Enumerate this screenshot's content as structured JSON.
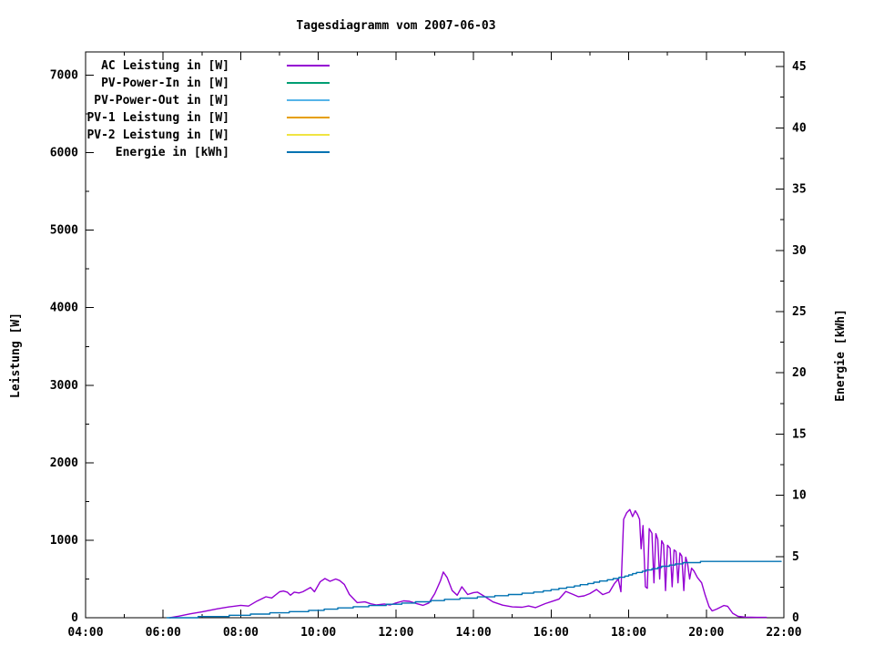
{
  "title": "Tagesdiagramm vom 2007-06-03",
  "chart_data": {
    "type": "line",
    "title": "Tagesdiagramm vom 2007-06-03",
    "grid": false,
    "background": "#ffffff",
    "legend_position": "top-left-inside",
    "x_axis": {
      "label": "",
      "unit": "time",
      "range_hours": [
        4,
        22
      ],
      "tick_hours": [
        4,
        6,
        8,
        10,
        12,
        14,
        16,
        18,
        20,
        22
      ],
      "tick_labels": [
        "04:00",
        "06:00",
        "08:00",
        "10:00",
        "12:00",
        "14:00",
        "16:00",
        "18:00",
        "20:00",
        "22:00"
      ],
      "minor_tick_hours": [
        5,
        7,
        9,
        11,
        13,
        15,
        17,
        19,
        21
      ]
    },
    "y_left": {
      "label": "Leistung [W]",
      "range": [
        0,
        7300
      ],
      "ticks": [
        0,
        1000,
        2000,
        3000,
        4000,
        5000,
        6000,
        7000
      ],
      "tick_labels": [
        "0",
        "1000",
        "2000",
        "3000",
        "4000",
        "5000",
        "6000",
        "7000"
      ],
      "minor_step": 500
    },
    "y_right": {
      "label": "Energie [kWh]",
      "range": [
        0,
        46.2
      ],
      "ticks": [
        0,
        5,
        10,
        15,
        20,
        25,
        30,
        35,
        40,
        45
      ],
      "tick_labels": [
        "0",
        "5",
        "10",
        "15",
        "20",
        "25",
        "30",
        "35",
        "40",
        "45"
      ],
      "minor_step": 2.5
    },
    "series": [
      {
        "name": "AC Leistung in [W]",
        "color": "#9400d3",
        "axis": "left",
        "style": "line",
        "points": [
          [
            6.17,
            0
          ],
          [
            6.4,
            20
          ],
          [
            6.7,
            50
          ],
          [
            7.0,
            75
          ],
          [
            7.4,
            115
          ],
          [
            7.7,
            140
          ],
          [
            8.0,
            160
          ],
          [
            8.2,
            150
          ],
          [
            8.42,
            215
          ],
          [
            8.65,
            270
          ],
          [
            8.8,
            255
          ],
          [
            9.0,
            335
          ],
          [
            9.1,
            345
          ],
          [
            9.2,
            330
          ],
          [
            9.28,
            290
          ],
          [
            9.38,
            330
          ],
          [
            9.5,
            320
          ],
          [
            9.6,
            335
          ],
          [
            9.8,
            390
          ],
          [
            9.9,
            335
          ],
          [
            10.05,
            465
          ],
          [
            10.17,
            505
          ],
          [
            10.3,
            470
          ],
          [
            10.45,
            500
          ],
          [
            10.55,
            480
          ],
          [
            10.67,
            430
          ],
          [
            10.8,
            300
          ],
          [
            11.0,
            195
          ],
          [
            11.2,
            205
          ],
          [
            11.35,
            180
          ],
          [
            11.5,
            165
          ],
          [
            11.7,
            178
          ],
          [
            11.85,
            165
          ],
          [
            12.0,
            190
          ],
          [
            12.2,
            218
          ],
          [
            12.35,
            212
          ],
          [
            12.55,
            180
          ],
          [
            12.7,
            160
          ],
          [
            12.85,
            190
          ],
          [
            13.0,
            310
          ],
          [
            13.15,
            480
          ],
          [
            13.22,
            590
          ],
          [
            13.32,
            520
          ],
          [
            13.45,
            350
          ],
          [
            13.58,
            290
          ],
          [
            13.7,
            400
          ],
          [
            13.85,
            300
          ],
          [
            14.0,
            325
          ],
          [
            14.1,
            330
          ],
          [
            14.3,
            270
          ],
          [
            14.5,
            205
          ],
          [
            14.75,
            162
          ],
          [
            15.0,
            140
          ],
          [
            15.25,
            135
          ],
          [
            15.42,
            152
          ],
          [
            15.6,
            130
          ],
          [
            15.85,
            182
          ],
          [
            16.05,
            215
          ],
          [
            16.2,
            240
          ],
          [
            16.38,
            340
          ],
          [
            16.55,
            305
          ],
          [
            16.7,
            272
          ],
          [
            16.85,
            282
          ],
          [
            17.0,
            312
          ],
          [
            17.17,
            365
          ],
          [
            17.33,
            298
          ],
          [
            17.5,
            330
          ],
          [
            17.63,
            440
          ],
          [
            17.73,
            500
          ],
          [
            17.8,
            335
          ],
          [
            17.87,
            1270
          ],
          [
            17.95,
            1355
          ],
          [
            18.03,
            1395
          ],
          [
            18.1,
            1305
          ],
          [
            18.17,
            1380
          ],
          [
            18.23,
            1330
          ],
          [
            18.28,
            1270
          ],
          [
            18.32,
            890
          ],
          [
            18.37,
            1190
          ],
          [
            18.43,
            400
          ],
          [
            18.48,
            380
          ],
          [
            18.53,
            1150
          ],
          [
            18.6,
            1090
          ],
          [
            18.65,
            450
          ],
          [
            18.7,
            1085
          ],
          [
            18.75,
            1010
          ],
          [
            18.8,
            500
          ],
          [
            18.85,
            995
          ],
          [
            18.9,
            945
          ],
          [
            18.95,
            350
          ],
          [
            19.0,
            935
          ],
          [
            19.07,
            895
          ],
          [
            19.12,
            400
          ],
          [
            19.17,
            875
          ],
          [
            19.22,
            855
          ],
          [
            19.27,
            450
          ],
          [
            19.32,
            835
          ],
          [
            19.37,
            795
          ],
          [
            19.42,
            350
          ],
          [
            19.47,
            780
          ],
          [
            19.52,
            695
          ],
          [
            19.57,
            500
          ],
          [
            19.62,
            640
          ],
          [
            19.68,
            605
          ],
          [
            19.77,
            520
          ],
          [
            19.88,
            450
          ],
          [
            19.97,
            295
          ],
          [
            20.07,
            145
          ],
          [
            20.15,
            88
          ],
          [
            20.27,
            112
          ],
          [
            20.45,
            158
          ],
          [
            20.55,
            148
          ],
          [
            20.68,
            58
          ],
          [
            20.82,
            18
          ],
          [
            21.0,
            8
          ],
          [
            21.3,
            5
          ],
          [
            21.55,
            5
          ]
        ]
      },
      {
        "name": "PV-Power-In in [W]",
        "color": "#009e73",
        "axis": "left",
        "style": "line",
        "points": []
      },
      {
        "name": "PV-Power-Out in [W]",
        "color": "#56b4e9",
        "axis": "left",
        "style": "line",
        "points": []
      },
      {
        "name": "PV-1 Leistung in [W]",
        "color": "#e69f00",
        "axis": "left",
        "style": "line",
        "points": []
      },
      {
        "name": "PV-2 Leistung in [W]",
        "color": "#f0e442",
        "axis": "left",
        "style": "line",
        "points": []
      },
      {
        "name": "Energie in [kWh]",
        "color": "#0072b2",
        "axis": "right",
        "style": "steps",
        "points": [
          [
            6.1,
            0
          ],
          [
            6.5,
            0.02
          ],
          [
            7.0,
            0.06
          ],
          [
            7.5,
            0.12
          ],
          [
            8.0,
            0.2
          ],
          [
            8.5,
            0.3
          ],
          [
            9.0,
            0.4
          ],
          [
            9.5,
            0.5
          ],
          [
            10.0,
            0.62
          ],
          [
            10.5,
            0.75
          ],
          [
            11.0,
            0.88
          ],
          [
            11.5,
            1.0
          ],
          [
            12.0,
            1.12
          ],
          [
            12.5,
            1.25
          ],
          [
            13.0,
            1.38
          ],
          [
            13.5,
            1.52
          ],
          [
            14.0,
            1.63
          ],
          [
            14.5,
            1.74
          ],
          [
            15.0,
            1.88
          ],
          [
            15.5,
            2.03
          ],
          [
            16.0,
            2.25
          ],
          [
            16.5,
            2.5
          ],
          [
            17.0,
            2.8
          ],
          [
            17.5,
            3.1
          ],
          [
            17.9,
            3.35
          ],
          [
            18.2,
            3.65
          ],
          [
            18.5,
            3.9
          ],
          [
            18.8,
            4.12
          ],
          [
            19.1,
            4.3
          ],
          [
            19.4,
            4.45
          ],
          [
            19.7,
            4.53
          ],
          [
            20.0,
            4.57
          ],
          [
            20.3,
            4.6
          ],
          [
            20.7,
            4.61
          ],
          [
            21.2,
            4.62
          ],
          [
            21.93,
            4.62
          ]
        ]
      }
    ]
  }
}
